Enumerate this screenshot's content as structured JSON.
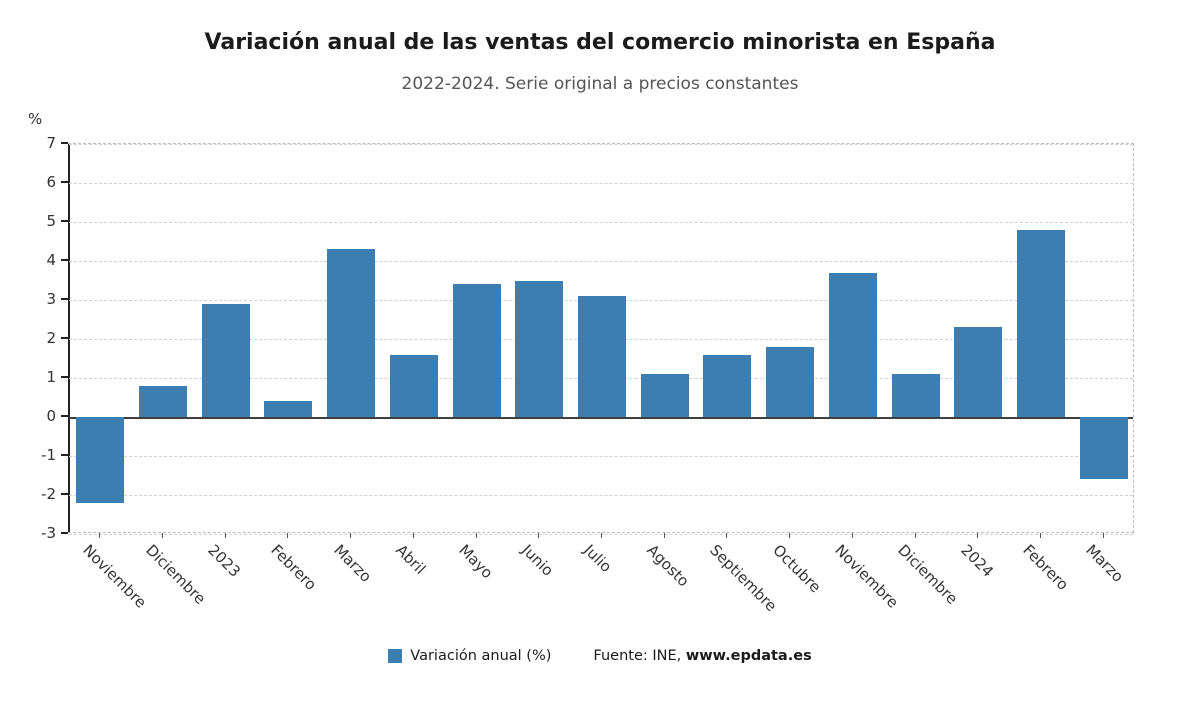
{
  "header": {
    "title": "Variación anual de las ventas del comercio minorista en España",
    "subtitle": "2022-2024. Serie original a precios constantes"
  },
  "chart_data": {
    "type": "bar",
    "title": "Variación anual de las ventas del comercio minorista en España",
    "subtitle": "2022-2024. Serie original a precios constantes",
    "categories": [
      "Noviembre",
      "Diciembre",
      "2023",
      "Febrero",
      "Marzo",
      "Abril",
      "Mayo",
      "Junio",
      "Julio",
      "Agosto",
      "Septiembre",
      "Octubre",
      "Noviembre",
      "Diciembre",
      "2024",
      "Febrero",
      "Marzo"
    ],
    "values": [
      -2.2,
      0.8,
      2.9,
      0.4,
      4.3,
      1.6,
      3.4,
      3.5,
      3.1,
      1.1,
      1.6,
      1.8,
      3.7,
      1.1,
      2.3,
      4.8,
      -1.6
    ],
    "xlabel": "",
    "ylabel": "%",
    "ylim": [
      -3,
      7
    ],
    "yticks": [
      7,
      6,
      5,
      4,
      3,
      2,
      1,
      0,
      -1,
      -2,
      -3
    ],
    "grid": "dashed horizontal",
    "legend_position": "bottom",
    "legend": "Variación anual (%)",
    "bar_color": "#3c7eb2"
  },
  "footer": {
    "source_prefix": "Fuente: INE, ",
    "source_link": "www.epdata.es"
  }
}
